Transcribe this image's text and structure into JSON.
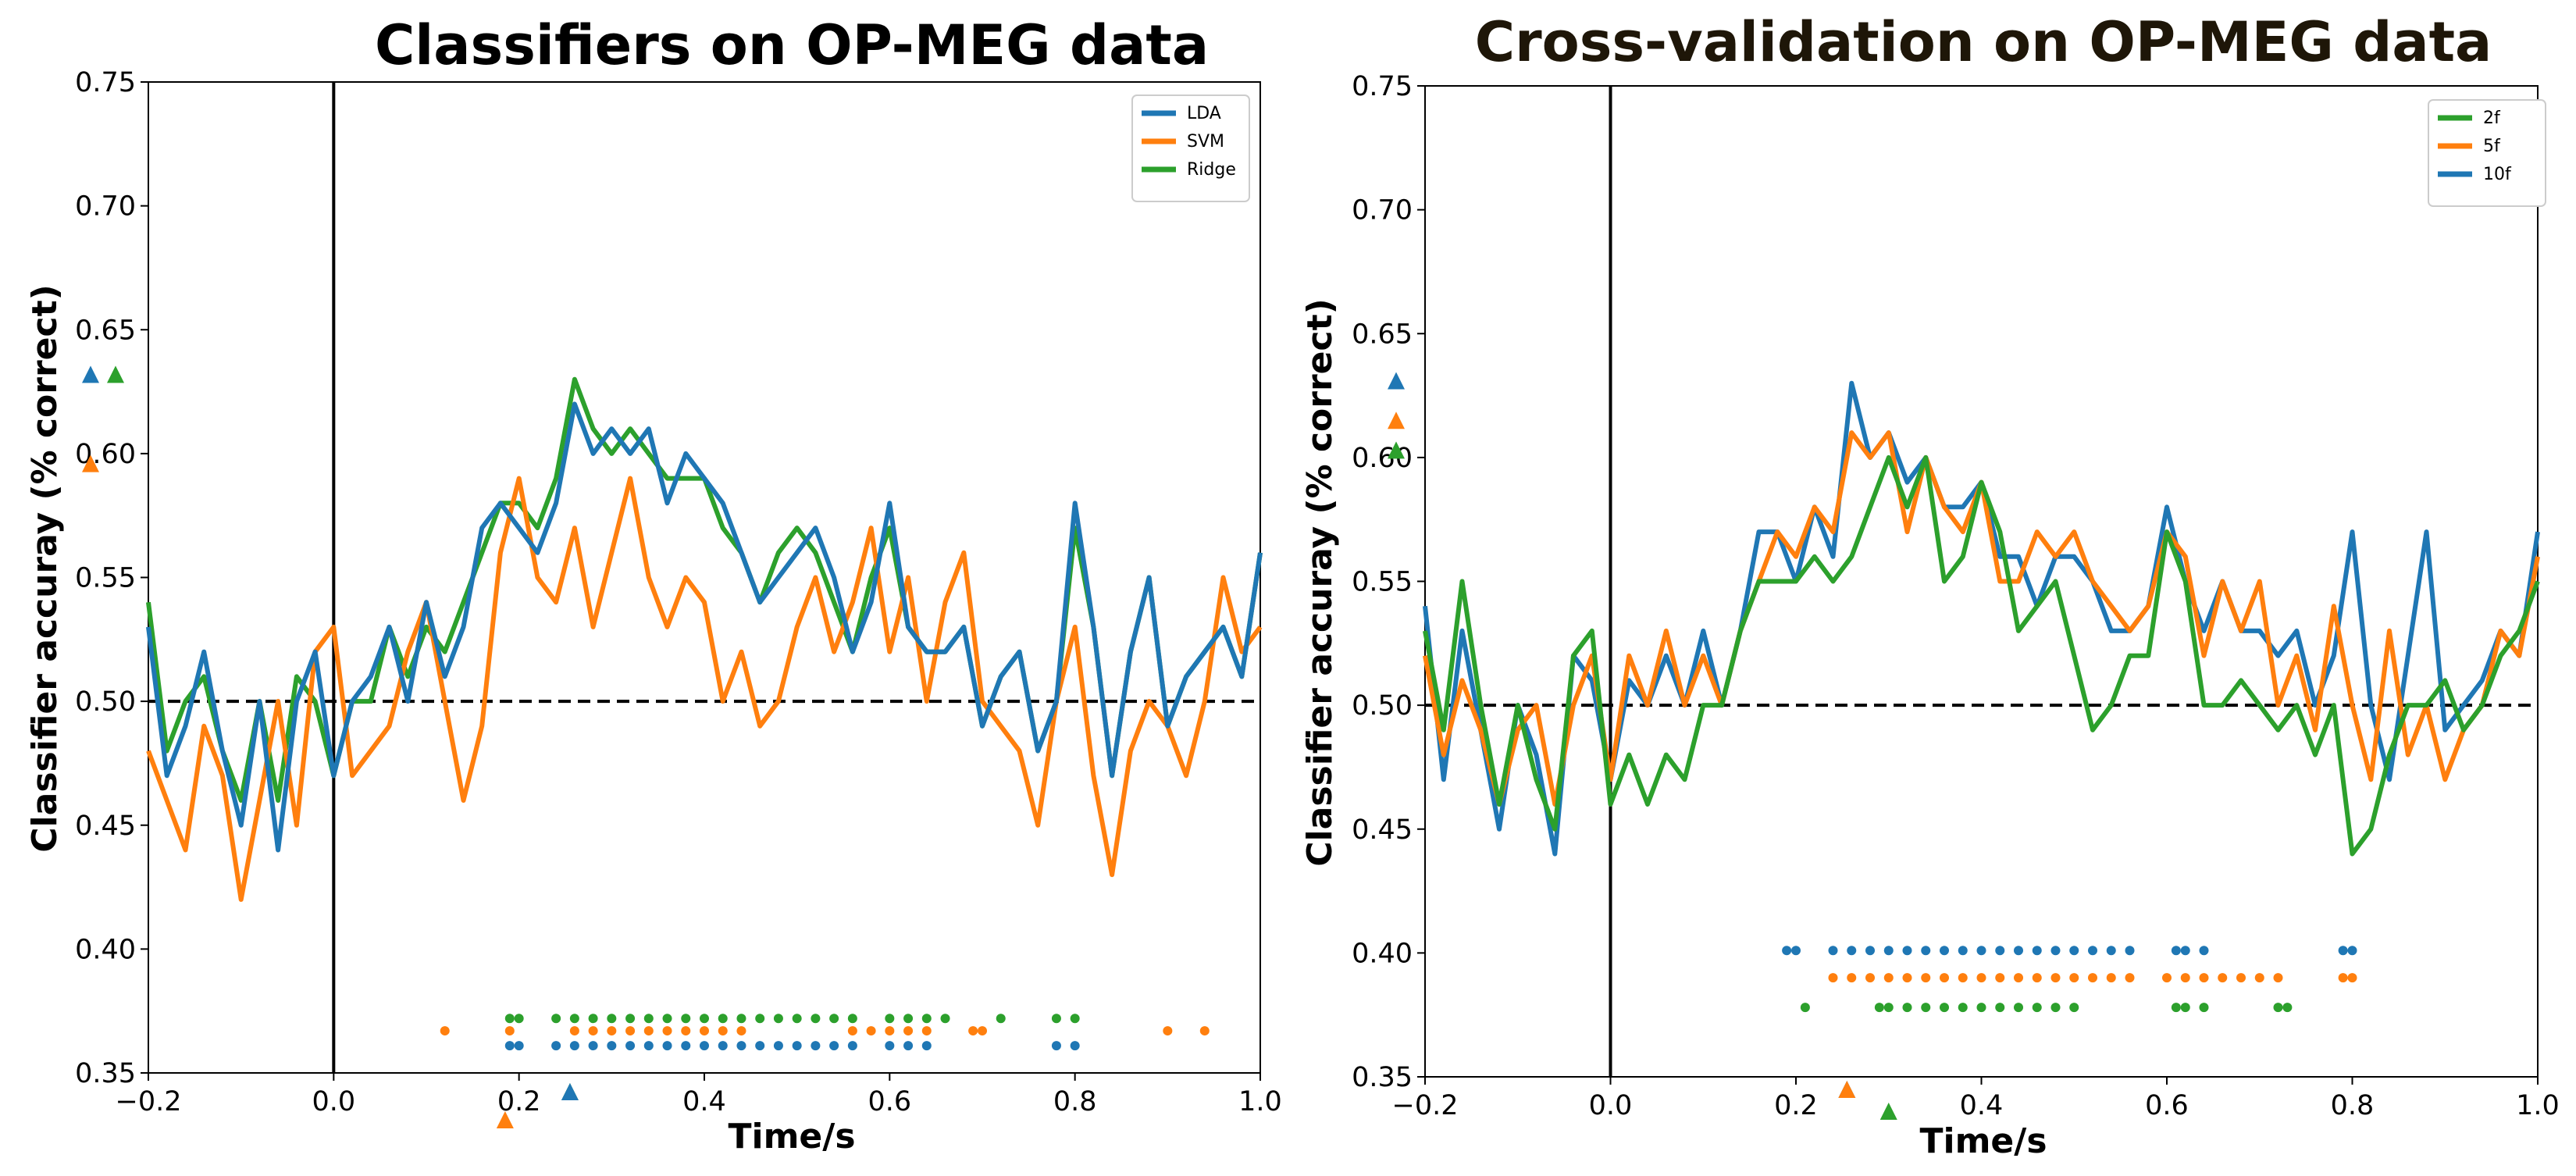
{
  "chart_data": [
    {
      "type": "line",
      "title": "Classifiers on OP-MEG data",
      "xlabel": "Time/s",
      "ylabel": "Classifier accuray (% correct)",
      "xlim": [
        -0.2,
        1.0
      ],
      "ylim": [
        0.35,
        0.75
      ],
      "xticks": [
        "−0.2",
        "0.0",
        "0.2",
        "0.4",
        "0.6",
        "0.8",
        "1.0"
      ],
      "xtick_values": [
        -0.2,
        0.0,
        0.2,
        0.4,
        0.6,
        0.8,
        1.0
      ],
      "yticks": [
        "0.35",
        "0.40",
        "0.45",
        "0.50",
        "0.55",
        "0.60",
        "0.65",
        "0.70",
        "0.75"
      ],
      "ytick_values": [
        0.35,
        0.4,
        0.45,
        0.5,
        0.55,
        0.6,
        0.65,
        0.7,
        0.75
      ],
      "chance_level": 0.5,
      "onset_line_x": 0.0,
      "legend_position": "top-right",
      "x": [
        -0.2,
        -0.18,
        -0.16,
        -0.14,
        -0.12,
        -0.1,
        -0.08,
        -0.06,
        -0.04,
        -0.02,
        0.0,
        0.02,
        0.04,
        0.06,
        0.08,
        0.1,
        0.12,
        0.14,
        0.16,
        0.18,
        0.2,
        0.22,
        0.24,
        0.26,
        0.28,
        0.3,
        0.32,
        0.34,
        0.36,
        0.38,
        0.4,
        0.42,
        0.44,
        0.46,
        0.48,
        0.5,
        0.52,
        0.54,
        0.56,
        0.58,
        0.6,
        0.62,
        0.64,
        0.66,
        0.68,
        0.7,
        0.72,
        0.74,
        0.76,
        0.78,
        0.8,
        0.82,
        0.84,
        0.86,
        0.88,
        0.9,
        0.92,
        0.94,
        0.96,
        0.98,
        1.0
      ],
      "series": [
        {
          "name": "LDA",
          "color": "#1f77b4",
          "values": [
            0.53,
            0.47,
            0.49,
            0.52,
            0.48,
            0.45,
            0.5,
            0.44,
            0.5,
            0.52,
            0.47,
            0.5,
            0.51,
            0.53,
            0.5,
            0.54,
            0.51,
            0.53,
            0.57,
            0.58,
            0.57,
            0.56,
            0.58,
            0.62,
            0.6,
            0.61,
            0.6,
            0.61,
            0.58,
            0.6,
            0.59,
            0.58,
            0.56,
            0.54,
            0.55,
            0.56,
            0.57,
            0.55,
            0.52,
            0.54,
            0.58,
            0.53,
            0.52,
            0.52,
            0.53,
            0.49,
            0.51,
            0.52,
            0.48,
            0.5,
            0.58,
            0.53,
            0.47,
            0.52,
            0.55,
            0.49,
            0.51,
            0.52,
            0.53,
            0.51,
            0.56
          ]
        },
        {
          "name": "SVM",
          "color": "#ff7f0e",
          "values": [
            0.48,
            0.46,
            0.44,
            0.49,
            0.47,
            0.42,
            0.46,
            0.5,
            0.45,
            0.52,
            0.53,
            0.47,
            0.48,
            0.49,
            0.52,
            0.54,
            0.5,
            0.46,
            0.49,
            0.56,
            0.59,
            0.55,
            0.54,
            0.57,
            0.53,
            0.56,
            0.59,
            0.55,
            0.53,
            0.55,
            0.54,
            0.5,
            0.52,
            0.49,
            0.5,
            0.53,
            0.55,
            0.52,
            0.54,
            0.57,
            0.52,
            0.55,
            0.5,
            0.54,
            0.56,
            0.5,
            0.49,
            0.48,
            0.45,
            0.5,
            0.53,
            0.47,
            0.43,
            0.48,
            0.5,
            0.49,
            0.47,
            0.5,
            0.55,
            0.52,
            0.53
          ]
        },
        {
          "name": "Ridge",
          "color": "#2ca02c",
          "values": [
            0.54,
            0.48,
            0.5,
            0.51,
            0.48,
            0.46,
            0.5,
            0.46,
            0.51,
            0.5,
            0.47,
            0.5,
            0.5,
            0.53,
            0.51,
            0.53,
            0.52,
            0.54,
            0.56,
            0.58,
            0.58,
            0.57,
            0.59,
            0.63,
            0.61,
            0.6,
            0.61,
            0.6,
            0.59,
            0.59,
            0.59,
            0.57,
            0.56,
            0.54,
            0.56,
            0.57,
            0.56,
            0.54,
            0.52,
            0.55,
            0.57,
            0.53,
            0.52,
            0.52,
            0.53,
            0.49,
            0.51,
            0.52,
            0.48,
            0.5,
            0.57,
            0.53,
            0.47,
            0.52,
            0.55,
            0.49,
            0.51,
            0.52,
            0.53,
            0.51,
            0.56
          ]
        }
      ],
      "significance": [
        {
          "series": "Ridge",
          "y": 0.372,
          "points": [
            0.19,
            0.2,
            0.24,
            0.26,
            0.28,
            0.3,
            0.32,
            0.34,
            0.36,
            0.38,
            0.4,
            0.42,
            0.44,
            0.46,
            0.48,
            0.5,
            0.52,
            0.54,
            0.56,
            0.6,
            0.62,
            0.64,
            0.66,
            0.72,
            0.78,
            0.8
          ]
        },
        {
          "series": "SVM",
          "y": 0.367,
          "points": [
            0.12,
            0.19,
            0.26,
            0.28,
            0.3,
            0.32,
            0.34,
            0.36,
            0.38,
            0.4,
            0.42,
            0.44,
            0.56,
            0.58,
            0.6,
            0.62,
            0.64,
            0.69,
            0.7,
            0.9,
            0.94
          ]
        },
        {
          "series": "LDA",
          "y": 0.361,
          "points": [
            0.19,
            0.2,
            0.24,
            0.26,
            0.28,
            0.3,
            0.32,
            0.34,
            0.36,
            0.38,
            0.4,
            0.42,
            0.44,
            0.46,
            0.48,
            0.5,
            0.52,
            0.54,
            0.56,
            0.6,
            0.62,
            0.64,
            0.78,
            0.8
          ]
        }
      ],
      "peak_markers_y": [
        {
          "series": "LDA",
          "y": 0.632
        },
        {
          "series": "Ridge",
          "y": 0.632
        },
        {
          "series": "SVM",
          "y": 0.596
        }
      ],
      "peak_markers_x": [
        {
          "series": "Ridge",
          "x": 0.255
        },
        {
          "series": "SVM",
          "x": 0.185
        },
        {
          "series": "LDA",
          "x": 0.255
        }
      ]
    },
    {
      "type": "line",
      "title": "Cross-validation on OP-MEG data",
      "xlabel": "Time/s",
      "ylabel": "Classifier accuray (% correct)",
      "xlim": [
        -0.2,
        1.0
      ],
      "ylim": [
        0.35,
        0.75
      ],
      "xticks": [
        "−0.2",
        "0.0",
        "0.2",
        "0.4",
        "0.6",
        "0.8",
        "1.0"
      ],
      "xtick_values": [
        -0.2,
        0.0,
        0.2,
        0.4,
        0.6,
        0.8,
        1.0
      ],
      "yticks": [
        "0.35",
        "0.40",
        "0.45",
        "0.50",
        "0.55",
        "0.60",
        "0.65",
        "0.70",
        "0.75"
      ],
      "ytick_values": [
        0.35,
        0.4,
        0.45,
        0.5,
        0.55,
        0.6,
        0.65,
        0.7,
        0.75
      ],
      "chance_level": 0.5,
      "onset_line_x": 0.0,
      "legend_position": "top-right",
      "x": [
        -0.2,
        -0.18,
        -0.16,
        -0.14,
        -0.12,
        -0.1,
        -0.08,
        -0.06,
        -0.04,
        -0.02,
        0.0,
        0.02,
        0.04,
        0.06,
        0.08,
        0.1,
        0.12,
        0.14,
        0.16,
        0.18,
        0.2,
        0.22,
        0.24,
        0.26,
        0.28,
        0.3,
        0.32,
        0.34,
        0.36,
        0.38,
        0.4,
        0.42,
        0.44,
        0.46,
        0.48,
        0.5,
        0.52,
        0.54,
        0.56,
        0.58,
        0.6,
        0.62,
        0.64,
        0.66,
        0.68,
        0.7,
        0.72,
        0.74,
        0.76,
        0.78,
        0.8,
        0.82,
        0.84,
        0.86,
        0.88,
        0.9,
        0.92,
        0.94,
        0.96,
        0.98,
        1.0
      ],
      "series": [
        {
          "name": "2f",
          "color": "#2ca02c",
          "values": [
            0.53,
            0.49,
            0.55,
            0.5,
            0.46,
            0.5,
            0.47,
            0.45,
            0.52,
            0.53,
            0.46,
            0.48,
            0.46,
            0.48,
            0.47,
            0.5,
            0.5,
            0.53,
            0.55,
            0.55,
            0.55,
            0.56,
            0.55,
            0.56,
            0.58,
            0.6,
            0.58,
            0.6,
            0.55,
            0.56,
            0.59,
            0.57,
            0.53,
            0.54,
            0.55,
            0.52,
            0.49,
            0.5,
            0.52,
            0.52,
            0.57,
            0.55,
            0.5,
            0.5,
            0.51,
            0.5,
            0.49,
            0.5,
            0.48,
            0.5,
            0.44,
            0.45,
            0.48,
            0.5,
            0.5,
            0.51,
            0.49,
            0.5,
            0.52,
            0.53,
            0.55
          ]
        },
        {
          "name": "5f",
          "color": "#ff7f0e",
          "values": [
            0.52,
            0.48,
            0.51,
            0.49,
            0.46,
            0.49,
            0.5,
            0.46,
            0.5,
            0.52,
            0.47,
            0.52,
            0.5,
            0.53,
            0.5,
            0.52,
            0.5,
            0.53,
            0.55,
            0.57,
            0.56,
            0.58,
            0.57,
            0.61,
            0.6,
            0.61,
            0.57,
            0.6,
            0.58,
            0.57,
            0.59,
            0.55,
            0.55,
            0.57,
            0.56,
            0.57,
            0.55,
            0.54,
            0.53,
            0.54,
            0.57,
            0.56,
            0.52,
            0.55,
            0.53,
            0.55,
            0.5,
            0.52,
            0.49,
            0.54,
            0.5,
            0.47,
            0.53,
            0.48,
            0.5,
            0.47,
            0.49,
            0.5,
            0.53,
            0.52,
            0.56
          ]
        },
        {
          "name": "10f",
          "color": "#1f77b4",
          "values": [
            0.54,
            0.47,
            0.53,
            0.49,
            0.45,
            0.5,
            0.48,
            0.44,
            0.52,
            0.51,
            0.47,
            0.51,
            0.5,
            0.52,
            0.5,
            0.53,
            0.5,
            0.53,
            0.57,
            0.57,
            0.55,
            0.58,
            0.56,
            0.63,
            0.6,
            0.61,
            0.59,
            0.6,
            0.58,
            0.58,
            0.59,
            0.56,
            0.56,
            0.54,
            0.56,
            0.56,
            0.55,
            0.53,
            0.53,
            0.54,
            0.58,
            0.55,
            0.53,
            0.55,
            0.53,
            0.53,
            0.52,
            0.53,
            0.5,
            0.52,
            0.57,
            0.5,
            0.47,
            0.52,
            0.57,
            0.49,
            0.5,
            0.51,
            0.53,
            0.52,
            0.57
          ]
        }
      ],
      "significance": [
        {
          "series": "10f",
          "y": 0.401,
          "points": [
            0.19,
            0.2,
            0.24,
            0.26,
            0.28,
            0.3,
            0.32,
            0.34,
            0.36,
            0.38,
            0.4,
            0.42,
            0.44,
            0.46,
            0.48,
            0.5,
            0.52,
            0.54,
            0.56,
            0.61,
            0.62,
            0.64,
            0.79,
            0.8
          ]
        },
        {
          "series": "5f",
          "y": 0.39,
          "points": [
            0.24,
            0.26,
            0.28,
            0.3,
            0.32,
            0.34,
            0.36,
            0.38,
            0.4,
            0.42,
            0.44,
            0.46,
            0.48,
            0.5,
            0.52,
            0.54,
            0.56,
            0.6,
            0.62,
            0.64,
            0.66,
            0.68,
            0.7,
            0.72,
            0.79,
            0.8
          ]
        },
        {
          "series": "2f",
          "y": 0.378,
          "points": [
            0.21,
            0.29,
            0.3,
            0.32,
            0.34,
            0.36,
            0.38,
            0.4,
            0.42,
            0.44,
            0.46,
            0.48,
            0.5,
            0.61,
            0.62,
            0.64,
            0.72,
            0.73
          ]
        }
      ],
      "peak_markers_y": [
        {
          "series": "10f",
          "y": 0.631
        },
        {
          "series": "5f",
          "y": 0.615
        },
        {
          "series": "2f",
          "y": 0.603
        }
      ],
      "peak_markers_x": [
        {
          "series": "10f",
          "x": 0.255
        },
        {
          "series": "2f",
          "x": 0.3
        },
        {
          "series": "5f",
          "x": 0.255
        }
      ]
    }
  ]
}
